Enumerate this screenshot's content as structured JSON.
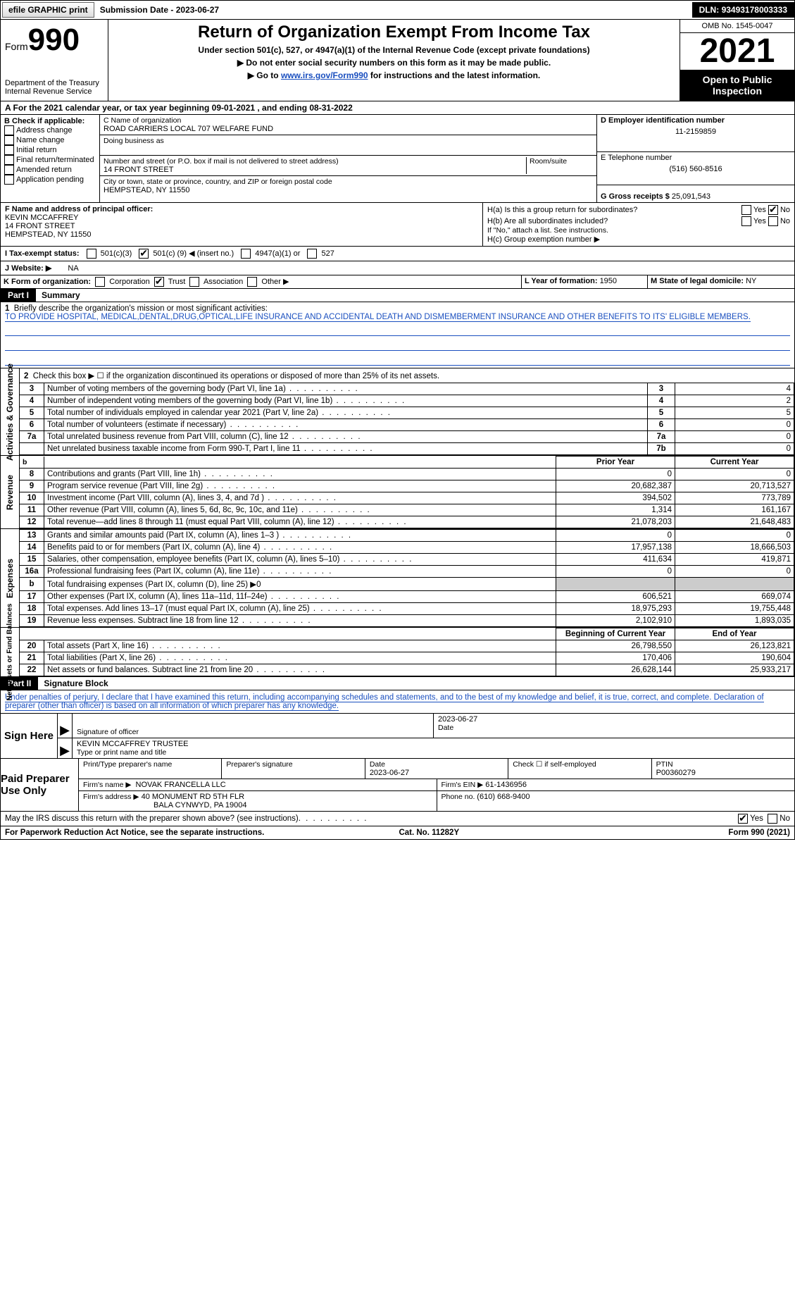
{
  "topbar": {
    "efile": "efile GRAPHIC print",
    "submission_label": "Submission Date - ",
    "submission_date": "2023-06-27",
    "dln_label": "DLN: ",
    "dln": "93493178003333"
  },
  "header": {
    "form_word": "Form",
    "form_num": "990",
    "dept1": "Department of the Treasury",
    "dept2": "Internal Revenue Service",
    "title": "Return of Organization Exempt From Income Tax",
    "sub": "Under section 501(c), 527, or 4947(a)(1) of the Internal Revenue Code (except private foundations)",
    "note1": "▶ Do not enter social security numbers on this form as it may be made public.",
    "note2_pre": "▶ Go to ",
    "note2_link": "www.irs.gov/Form990",
    "note2_post": " for instructions and the latest information.",
    "omb": "OMB No. 1545-0047",
    "year": "2021",
    "open": "Open to Public Inspection"
  },
  "line_a": "A For the 2021 calendar year, or tax year beginning 09-01-2021    , and ending 08-31-2022",
  "boxB": {
    "label": "B Check if applicable:",
    "opts": [
      "Address change",
      "Name change",
      "Initial return",
      "Final return/terminated",
      "Amended return",
      "Application pending"
    ]
  },
  "boxC": {
    "name_label": "C Name of organization",
    "name": "ROAD CARRIERS LOCAL 707 WELFARE FUND",
    "dba_label": "Doing business as",
    "street_label": "Number and street (or P.O. box if mail is not delivered to street address)",
    "room_label": "Room/suite",
    "street": "14 FRONT STREET",
    "city_label": "City or town, state or province, country, and ZIP or foreign postal code",
    "city": "HEMPSTEAD, NY  11550"
  },
  "boxD": {
    "label": "D Employer identification number",
    "ein": "11-2159859"
  },
  "boxE": {
    "label": "E Telephone number",
    "phone": "(516) 560-8516"
  },
  "boxG": {
    "label": "G Gross receipts $ ",
    "amount": "25,091,543"
  },
  "boxF": {
    "label": "F  Name and address of principal officer:",
    "name": "KEVIN MCCAFFREY",
    "street": "14 FRONT STREET",
    "city": "HEMPSTEAD, NY  11550"
  },
  "boxH": {
    "a": "H(a)  Is this a group return for subordinates?",
    "b": "H(b)  Are all subordinates included?",
    "b_note": "If \"No,\" attach a list. See instructions.",
    "c": "H(c)  Group exemption number ▶",
    "yes": "Yes",
    "no": "No"
  },
  "status": {
    "label": "I   Tax-exempt status:",
    "c3": "501(c)(3)",
    "c_pre": "501(c) (",
    "c_num": "9",
    "c_post": ") ◀ (insert no.)",
    "a1": "4947(a)(1) or",
    "s527": "527"
  },
  "website": {
    "label": "J   Website: ▶",
    "val": "NA"
  },
  "lineK": {
    "label": "K Form of organization:",
    "corp": "Corporation",
    "trust": "Trust",
    "assoc": "Association",
    "other": "Other ▶"
  },
  "lineL": {
    "label": "L Year of formation: ",
    "val": "1950"
  },
  "lineM": {
    "label": "M State of legal domicile: ",
    "val": "NY"
  },
  "partI": {
    "tab": "Part I",
    "title": "Summary",
    "q1_label": "1",
    "q1": "Briefly describe the organization's mission or most significant activities:",
    "mission": "TO PROVIDE HOSPITAL, MEDICAL,DENTAL,DRUG,OPTICAL,LIFE INSURANCE AND ACCIDENTAL DEATH AND DISMEMBERMENT INSURANCE AND OTHER BENEFITS TO ITS' ELIGIBLE MEMBERS.",
    "q2": "Check this box ▶ ☐  if the organization discontinued its operations or disposed of more than 25% of its net assets.",
    "side_ag": "Activities & Governance",
    "side_rev": "Revenue",
    "side_exp": "Expenses",
    "side_na": "Net Assets or Fund Balances",
    "col_prior": "Prior Year",
    "col_curr": "Current Year",
    "col_beg": "Beginning of Current Year",
    "col_end": "End of Year",
    "rows_ag": [
      {
        "n": "3",
        "t": "Number of voting members of the governing body (Part VI, line 1a)",
        "c": "3",
        "v": "4"
      },
      {
        "n": "4",
        "t": "Number of independent voting members of the governing body (Part VI, line 1b)",
        "c": "4",
        "v": "2"
      },
      {
        "n": "5",
        "t": "Total number of individuals employed in calendar year 2021 (Part V, line 2a)",
        "c": "5",
        "v": "5"
      },
      {
        "n": "6",
        "t": "Total number of volunteers (estimate if necessary)",
        "c": "6",
        "v": "0"
      },
      {
        "n": "7a",
        "t": "Total unrelated business revenue from Part VIII, column (C), line 12",
        "c": "7a",
        "v": "0"
      },
      {
        "n": "",
        "t": "Net unrelated business taxable income from Form 990-T, Part I, line 11",
        "c": "7b",
        "v": "0"
      }
    ],
    "rows_rev": [
      {
        "n": "8",
        "t": "Contributions and grants (Part VIII, line 1h)",
        "p": "0",
        "c": "0"
      },
      {
        "n": "9",
        "t": "Program service revenue (Part VIII, line 2g)",
        "p": "20,682,387",
        "c": "20,713,527"
      },
      {
        "n": "10",
        "t": "Investment income (Part VIII, column (A), lines 3, 4, and 7d )",
        "p": "394,502",
        "c": "773,789"
      },
      {
        "n": "11",
        "t": "Other revenue (Part VIII, column (A), lines 5, 6d, 8c, 9c, 10c, and 11e)",
        "p": "1,314",
        "c": "161,167"
      },
      {
        "n": "12",
        "t": "Total revenue—add lines 8 through 11 (must equal Part VIII, column (A), line 12)",
        "p": "21,078,203",
        "c": "21,648,483"
      }
    ],
    "rows_exp": [
      {
        "n": "13",
        "t": "Grants and similar amounts paid (Part IX, column (A), lines 1–3 )",
        "p": "0",
        "c": "0"
      },
      {
        "n": "14",
        "t": "Benefits paid to or for members (Part IX, column (A), line 4)",
        "p": "17,957,138",
        "c": "18,666,503"
      },
      {
        "n": "15",
        "t": "Salaries, other compensation, employee benefits (Part IX, column (A), lines 5–10)",
        "p": "411,634",
        "c": "419,871"
      },
      {
        "n": "16a",
        "t": "Professional fundraising fees (Part IX, column (A), line 11e)",
        "p": "0",
        "c": "0"
      },
      {
        "n": "b",
        "t": "Total fundraising expenses (Part IX, column (D), line 25) ▶0",
        "p": "SHADE",
        "c": "SHADE"
      },
      {
        "n": "17",
        "t": "Other expenses (Part IX, column (A), lines 11a–11d, 11f–24e)",
        "p": "606,521",
        "c": "669,074"
      },
      {
        "n": "18",
        "t": "Total expenses. Add lines 13–17 (must equal Part IX, column (A), line 25)",
        "p": "18,975,293",
        "c": "19,755,448"
      },
      {
        "n": "19",
        "t": "Revenue less expenses. Subtract line 18 from line 12",
        "p": "2,102,910",
        "c": "1,893,035"
      }
    ],
    "rows_na": [
      {
        "n": "20",
        "t": "Total assets (Part X, line 16)",
        "p": "26,798,550",
        "c": "26,123,821"
      },
      {
        "n": "21",
        "t": "Total liabilities (Part X, line 26)",
        "p": "170,406",
        "c": "190,604"
      },
      {
        "n": "22",
        "t": "Net assets or fund balances. Subtract line 21 from line 20",
        "p": "26,628,144",
        "c": "25,933,217"
      }
    ]
  },
  "partII": {
    "tab": "Part II",
    "title": "Signature Block",
    "penalty": "Under penalties of perjury, I declare that I have examined this return, including accompanying schedules and statements, and to the best of my knowledge and belief, it is true, correct, and complete. Declaration of preparer (other than officer) is based on all information of which preparer has any knowledge."
  },
  "sign": {
    "here": "Sign Here",
    "sig_officer": "Signature of officer",
    "date": "2023-06-27",
    "date_lbl": "Date",
    "name": "KEVIN MCCAFFREY TRUSTEE",
    "name_lbl": "Type or print name and title"
  },
  "paid": {
    "label": "Paid Preparer Use Only",
    "h_name": "Print/Type preparer's name",
    "h_sig": "Preparer's signature",
    "h_date": "Date",
    "date": "2023-06-27",
    "self": "Check ☐ if self-employed",
    "ptin_lbl": "PTIN",
    "ptin": "P00360279",
    "firm_name_lbl": "Firm's name      ▶",
    "firm_name": "NOVAK FRANCELLA LLC",
    "firm_ein_lbl": "Firm's EIN ▶",
    "firm_ein": "61-1436956",
    "firm_addr_lbl": "Firm's address ▶",
    "firm_addr1": "40 MONUMENT RD 5TH FLR",
    "firm_addr2": "BALA CYNWYD, PA  19004",
    "phone_lbl": "Phone no. ",
    "phone": "(610) 668-9400"
  },
  "discuss": {
    "q": "May the IRS discuss this return with the preparer shown above? (see instructions)",
    "yes": "Yes",
    "no": "No"
  },
  "footer": {
    "left": "For Paperwork Reduction Act Notice, see the separate instructions.",
    "mid": "Cat. No. 11282Y",
    "right": "Form 990 (2021)"
  },
  "colors": {
    "link": "#1a4fbf",
    "black": "#000000",
    "shade": "#cccccc"
  }
}
